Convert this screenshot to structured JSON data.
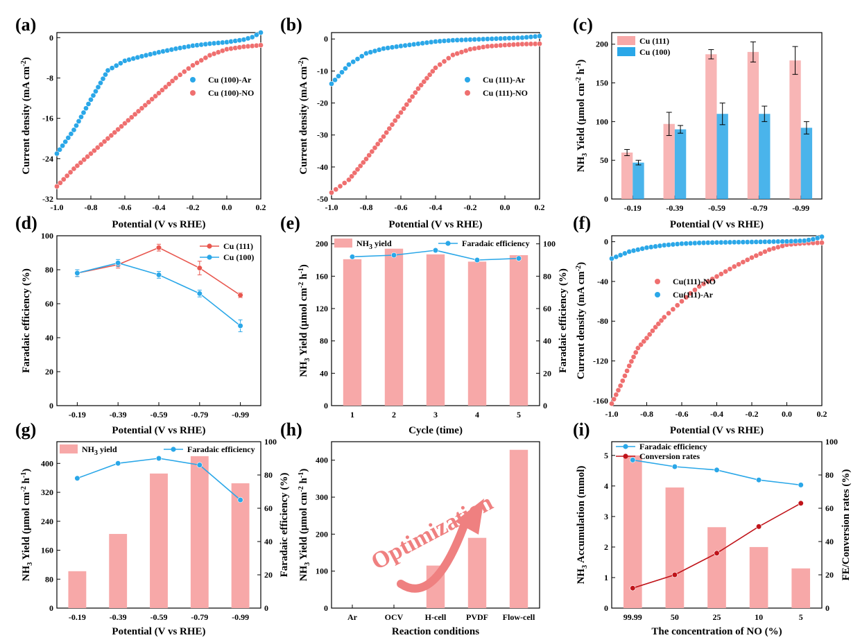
{
  "colors": {
    "blue": "#2aa7e8",
    "red_point": "#ef6f6f",
    "red_bar": "#f7a8a8",
    "red_line": "#e8574f",
    "dark_red": "#c0141a",
    "arrow": "#ef8080"
  },
  "panel_labels": [
    "(a)",
    "(b)",
    "(c)",
    "(d)",
    "(e)",
    "(f)",
    "(g)",
    "(h)",
    "(i)"
  ],
  "annotation": {
    "text": "Optimization"
  },
  "chart_data": [
    {
      "id": "a",
      "type": "scatter",
      "xlabel": "Potential (V vs RHE)",
      "ylabel": "Current density (mA cm⁻²)",
      "xlim": [
        -1.0,
        0.2
      ],
      "ylim": [
        -32,
        1
      ],
      "xticks": [
        -1.0,
        -0.8,
        -0.6,
        -0.4,
        -0.2,
        0.0,
        0.2
      ],
      "xticklabels": [
        "-1.0",
        "-0.8",
        "-0.6",
        "-0.4",
        "-0.2",
        "0.0",
        "0.2"
      ],
      "yticks": [
        0,
        -8,
        -16,
        -24,
        -32
      ],
      "yticklabels": [
        "0",
        "-8",
        "-16",
        "-24",
        "-32"
      ],
      "legend": {
        "position": "center-right"
      },
      "series": [
        {
          "name": "Cu (100)-Ar",
          "color": "blue",
          "x": [
            -1.0,
            -0.9,
            -0.8,
            -0.7,
            -0.6,
            -0.5,
            -0.4,
            -0.3,
            -0.2,
            -0.1,
            0.0,
            0.1,
            0.15,
            0.2
          ],
          "y": [
            -23,
            -18.3,
            -12.3,
            -6.5,
            -4.6,
            -3.7,
            -2.9,
            -2.2,
            -1.6,
            -1.2,
            -0.9,
            -0.4,
            0.1,
            1.0
          ]
        },
        {
          "name": "Cu (100)-NO",
          "color": "red_point",
          "x": [
            -1.0,
            -0.9,
            -0.8,
            -0.7,
            -0.6,
            -0.5,
            -0.4,
            -0.3,
            -0.2,
            -0.1,
            0.0,
            0.1,
            0.2
          ],
          "y": [
            -29.5,
            -26,
            -23,
            -20,
            -17,
            -14,
            -11,
            -8,
            -5.5,
            -3.5,
            -2.3,
            -1.8,
            -1.5
          ]
        }
      ]
    },
    {
      "id": "b",
      "type": "scatter",
      "xlabel": "Potential (V vs RHE)",
      "ylabel": "Current density (mA cm⁻²)",
      "xlim": [
        -1.0,
        0.2
      ],
      "ylim": [
        -50,
        2
      ],
      "xticks": [
        -1.0,
        -0.8,
        -0.6,
        -0.4,
        -0.2,
        0.0,
        0.2
      ],
      "xticklabels": [
        "-1.0",
        "-0.8",
        "-0.6",
        "-0.4",
        "-0.2",
        "0.0",
        "0.2"
      ],
      "yticks": [
        0,
        -10,
        -20,
        -30,
        -40,
        -50
      ],
      "yticklabels": [
        "0",
        "-10",
        "-20",
        "-30",
        "-40",
        "-50"
      ],
      "legend": {
        "position": "center-right"
      },
      "series": [
        {
          "name": "Cu (111)-Ar",
          "color": "blue",
          "x": [
            -1.0,
            -0.9,
            -0.8,
            -0.7,
            -0.6,
            -0.5,
            -0.4,
            -0.3,
            -0.2,
            -0.1,
            0.0,
            0.1,
            0.2
          ],
          "y": [
            -14,
            -8,
            -4.5,
            -3,
            -2.2,
            -1.5,
            -0.8,
            -0.4,
            -0.2,
            0,
            0.2,
            0.4,
            0.9
          ]
        },
        {
          "name": "Cu (111)-NO",
          "color": "red_point",
          "x": [
            -1.0,
            -0.9,
            -0.8,
            -0.7,
            -0.6,
            -0.5,
            -0.4,
            -0.3,
            -0.2,
            -0.1,
            0.0,
            0.1,
            0.2
          ],
          "y": [
            -48,
            -44,
            -37.5,
            -30.5,
            -23,
            -15.5,
            -9,
            -5,
            -3.2,
            -2.3,
            -1.9,
            -1.6,
            -1.5
          ]
        }
      ]
    },
    {
      "id": "c",
      "type": "bar",
      "xlabel": "Potential (V vs RHE)",
      "ylabel": "NH₃ Yield (μmol cm⁻² h⁻¹)",
      "categories": [
        "-0.19",
        "-0.39",
        "-0.59",
        "-0.79",
        "-0.99"
      ],
      "ylim": [
        0,
        215
      ],
      "yticks": [
        0,
        50,
        100,
        150,
        200
      ],
      "yticklabels": [
        "0",
        "50",
        "100",
        "150",
        "200"
      ],
      "legend": {
        "position": "top-left"
      },
      "series": [
        {
          "name": "Cu (111)",
          "color": "red_bar",
          "values": [
            60,
            97,
            187,
            190,
            179
          ],
          "errors": [
            4,
            15,
            6,
            13,
            18
          ]
        },
        {
          "name": "Cu (100)",
          "color": "blue",
          "values": [
            47,
            90,
            110,
            110,
            92
          ],
          "errors": [
            3,
            5,
            14,
            10,
            8
          ]
        }
      ]
    },
    {
      "id": "d",
      "type": "line",
      "xlabel": "Potential (V vs RHE)",
      "ylabel": "Faradaic efficiency (%)",
      "categories": [
        "-0.19",
        "-0.39",
        "-0.59",
        "-0.79",
        "-0.99"
      ],
      "ylim": [
        0,
        100
      ],
      "yticks": [
        0,
        20,
        40,
        60,
        80,
        100
      ],
      "yticklabels": [
        "0",
        "20",
        "40",
        "60",
        "80",
        "100"
      ],
      "legend": {
        "position": "top-right"
      },
      "series": [
        {
          "name": "Cu (111)",
          "color": "red_line",
          "values": [
            78,
            83,
            93,
            81,
            65
          ],
          "errors": [
            2,
            2,
            2,
            4,
            1.5
          ]
        },
        {
          "name": "Cu (100)",
          "color": "blue",
          "values": [
            78,
            84,
            77,
            66,
            47
          ],
          "errors": [
            2,
            2,
            2,
            2,
            3.5
          ]
        }
      ]
    },
    {
      "id": "e",
      "type": "bar",
      "xlabel": "Cycle (time)",
      "ylabel": "NH₃ Yield (μmol cm⁻² h⁻¹)",
      "ylabel2": "Faradaic efficiency (%)",
      "categories": [
        "1",
        "2",
        "3",
        "4",
        "5"
      ],
      "ylim": [
        0,
        210
      ],
      "yticks": [
        0,
        40,
        80,
        120,
        160,
        200
      ],
      "yticklabels": [
        "0",
        "40",
        "80",
        "120",
        "160",
        "200"
      ],
      "y2lim": [
        0,
        105
      ],
      "y2ticks": [
        0,
        20,
        40,
        60,
        80,
        100
      ],
      "y2ticklabels": [
        "0",
        "20",
        "40",
        "60",
        "80",
        "100"
      ],
      "legend": {
        "position": "top"
      },
      "series": [
        {
          "name": "NH₃ yield",
          "color": "red_bar",
          "axis": "left",
          "kind": "bar",
          "values": [
            181,
            194,
            187,
            178,
            186
          ]
        },
        {
          "name": "Faradaic efficiency",
          "color": "blue",
          "axis": "right",
          "kind": "line",
          "values": [
            92,
            93,
            96,
            90,
            91
          ]
        }
      ]
    },
    {
      "id": "f",
      "type": "scatter",
      "xlabel": "Potential (V vs RHE)",
      "ylabel": "Current density (mA cm⁻²)",
      "xlim": [
        -1.0,
        0.2
      ],
      "ylim": [
        -165,
        6
      ],
      "xticks": [
        -1.0,
        -0.8,
        -0.6,
        -0.4,
        -0.2,
        0.0,
        0.2
      ],
      "xticklabels": [
        "-1.0",
        "-0.8",
        "-0.6",
        "-0.4",
        "-0.2",
        "0.0",
        "0.2"
      ],
      "yticks": [
        0,
        -40,
        -80,
        -120,
        -160
      ],
      "yticklabels": [
        "0",
        "-40",
        "-80",
        "-120",
        "-160"
      ],
      "legend": {
        "position": "center-right"
      },
      "series": [
        {
          "name": "Cu(111)-NO",
          "color": "red_point",
          "x": [
            -1.0,
            -0.95,
            -0.9,
            -0.85,
            -0.8,
            -0.75,
            -0.7,
            -0.65,
            -0.6,
            -0.55,
            -0.5,
            -0.45,
            -0.4,
            -0.3,
            -0.2,
            -0.1,
            0.0,
            0.1,
            0.2
          ],
          "y": [
            -163,
            -145,
            -125,
            -107,
            -97,
            -86,
            -76,
            -68,
            -60,
            -52,
            -45,
            -40,
            -35,
            -25,
            -16,
            -8,
            -3,
            -1.5,
            -1
          ]
        },
        {
          "name": "Cu(111)-Ar",
          "color": "blue",
          "x": [
            -1.0,
            -0.9,
            -0.8,
            -0.7,
            -0.6,
            -0.5,
            -0.4,
            -0.3,
            -0.2,
            -0.1,
            0.0,
            0.1,
            0.15,
            0.2
          ],
          "y": [
            -17,
            -10,
            -6,
            -3.5,
            -2,
            -1.2,
            -0.8,
            -0.5,
            -0.3,
            0,
            0.3,
            1,
            2.5,
            5
          ]
        }
      ]
    },
    {
      "id": "g",
      "type": "bar",
      "xlabel": "Potential (V vs RHE)",
      "ylabel": "NH₃ Yield (μmol cm⁻² h⁻¹)",
      "ylabel2": "Faradaic efficiency (%)",
      "categories": [
        "-0.19",
        "-0.39",
        "-0.59",
        "-0.79",
        "-0.99"
      ],
      "ylim": [
        0,
        460
      ],
      "yticks": [
        0,
        80,
        160,
        240,
        320,
        400
      ],
      "yticklabels": [
        "0",
        "80",
        "160",
        "240",
        "320",
        "400"
      ],
      "y2lim": [
        0,
        100
      ],
      "y2ticks": [
        0,
        20,
        40,
        60,
        80,
        100
      ],
      "y2ticklabels": [
        "0",
        "20",
        "40",
        "60",
        "80",
        "100"
      ],
      "legend": {
        "position": "top"
      },
      "series": [
        {
          "name": "NH₃ yield",
          "color": "red_bar",
          "axis": "left",
          "kind": "bar",
          "values": [
            102,
            205,
            372,
            420,
            345
          ]
        },
        {
          "name": "Faradaic efficiency",
          "color": "blue",
          "axis": "right",
          "kind": "line",
          "values": [
            78,
            87,
            90,
            86,
            65
          ]
        }
      ]
    },
    {
      "id": "h",
      "type": "bar",
      "xlabel": "Reaction conditions",
      "ylabel": "NH₃ Yield (μmol cm⁻² h⁻¹)",
      "categories": [
        "Ar",
        "OCV",
        "H-cell",
        "PVDF",
        "Flow-cell"
      ],
      "ylim": [
        0,
        450
      ],
      "yticks": [
        0,
        100,
        200,
        300,
        400
      ],
      "yticklabels": [
        "0",
        "100",
        "200",
        "300",
        "400"
      ],
      "series": [
        {
          "name": "NH₃ yield",
          "color": "red_bar",
          "values": [
            0,
            0,
            115,
            190,
            428
          ]
        }
      ]
    },
    {
      "id": "i",
      "type": "bar",
      "xlabel": "The concentration of NO (%)",
      "ylabel": "NH₃ Accumulation (mmol)",
      "ylabel2": "FE/Conversion rates (%)",
      "categories": [
        "99.99",
        "50",
        "25",
        "10",
        "5"
      ],
      "ylim": [
        0,
        5.45
      ],
      "yticks": [
        0,
        1,
        2,
        3,
        4,
        5
      ],
      "yticklabels": [
        "0",
        "1",
        "2",
        "3",
        "4",
        "5"
      ],
      "y2lim": [
        0,
        100
      ],
      "y2ticks": [
        0,
        20,
        40,
        60,
        80,
        100
      ],
      "y2ticklabels": [
        "0",
        "20",
        "40",
        "60",
        "80",
        "100"
      ],
      "legend": {
        "position": "top-left"
      },
      "series": [
        {
          "name": "NH₃ accumulation",
          "color": "red_bar",
          "axis": "left",
          "kind": "bar",
          "values": [
            5.0,
            3.95,
            2.65,
            2.0,
            1.3
          ]
        },
        {
          "name": "Faradaic efficiency",
          "color": "blue",
          "axis": "right",
          "kind": "line",
          "values": [
            89,
            85,
            83,
            77,
            74
          ]
        },
        {
          "name": "Conversion rates",
          "color": "dark_red",
          "axis": "right",
          "kind": "line",
          "values": [
            12,
            20,
            33,
            49,
            63
          ]
        }
      ]
    }
  ]
}
